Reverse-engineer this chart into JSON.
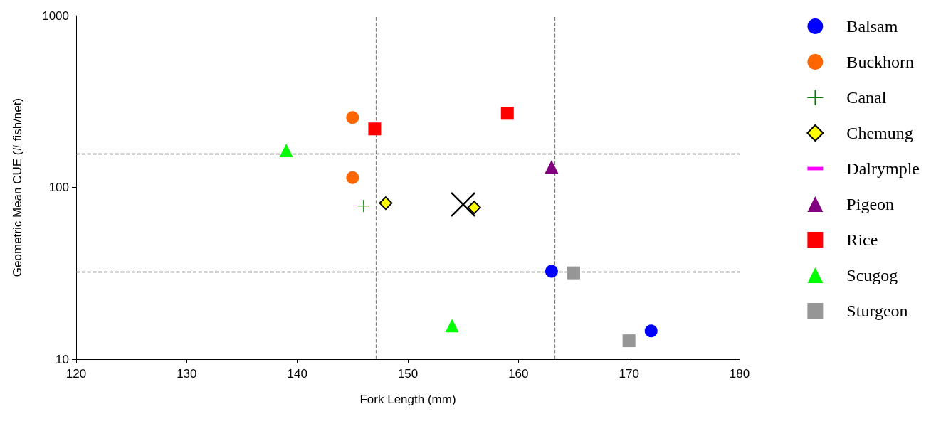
{
  "chart_data": {
    "type": "scatter",
    "xlabel": "Fork Length (mm)",
    "ylabel": "Geometric Mean CUE (# fish/net)",
    "xlim": [
      120,
      180
    ],
    "xticks": [
      120,
      130,
      140,
      150,
      160,
      170,
      180
    ],
    "ylim": [
      10,
      1000
    ],
    "yticks": [
      10,
      100,
      1000
    ],
    "log": "y",
    "grid": false,
    "legend": "right",
    "series": [
      {
        "name": "Balsam",
        "color": "#0000ff",
        "marker": "circle",
        "x": [
          163,
          172
        ],
        "values": [
          32.5,
          14.6
        ]
      },
      {
        "name": "Buckhorn",
        "color": "#ff6600",
        "marker": "circle",
        "x": [
          145,
          145
        ],
        "values": [
          255,
          114
        ]
      },
      {
        "name": "Canal",
        "color": "#008000",
        "marker": "cross",
        "x": [
          146
        ],
        "values": [
          78
        ]
      },
      {
        "name": "Chemung",
        "color": "#ffff00",
        "marker": "diamond",
        "x": [
          148,
          156
        ],
        "values": [
          81,
          76.5
        ]
      },
      {
        "name": "Dalrymple",
        "color": "#ff00ff",
        "marker": "dash"
      },
      {
        "name": "Pigeon",
        "color": "#800080",
        "marker": "triangle",
        "x": [
          163
        ],
        "values": [
          132
        ]
      },
      {
        "name": "Rice",
        "color": "#ff0000",
        "marker": "square",
        "x": [
          147,
          159
        ],
        "values": [
          219,
          270
        ]
      },
      {
        "name": "Scugog",
        "color": "#00ff00",
        "marker": "triangle",
        "x": [
          139,
          154
        ],
        "values": [
          164,
          15.7
        ]
      },
      {
        "name": "Sturgeon",
        "color": "#969696",
        "marker": "square",
        "x": [
          165,
          170
        ],
        "values": [
          31.8,
          12.8
        ]
      },
      {
        "color": "#000000",
        "marker": "x",
        "x": [
          155
        ],
        "values": [
          79.5
        ]
      }
    ],
    "ref_lines": [
      {
        "axis": "x",
        "value": 147.1,
        "color": "#808080",
        "line_style": "dashed"
      },
      {
        "axis": "x",
        "value": 163.3,
        "color": "#808080",
        "line_style": "dashed"
      },
      {
        "axis": "y",
        "value": 156.6,
        "color": "#606060",
        "line_style": "dashed"
      },
      {
        "axis": "y",
        "value": 32.2,
        "color": "#606060",
        "line_style": "dashed"
      }
    ]
  }
}
